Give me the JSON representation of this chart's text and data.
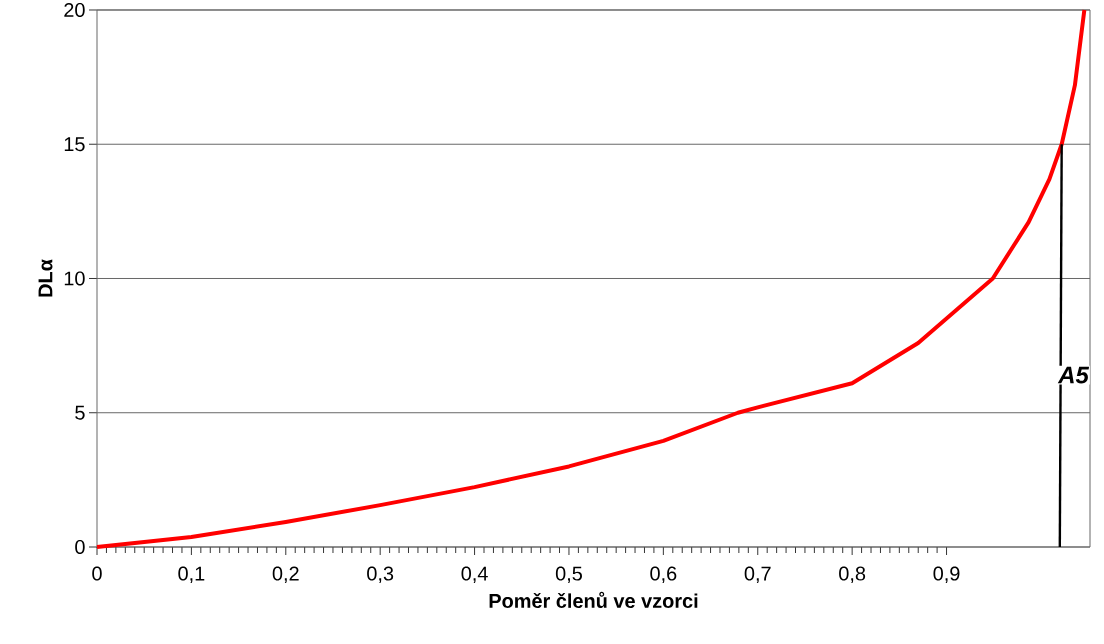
{
  "chart_data": {
    "type": "line",
    "xlabel": "Poměr členů ve vzorci",
    "ylabel": "DLα",
    "xlim": [
      0,
      1.052
    ],
    "ylim": [
      0,
      20
    ],
    "xticks": [
      {
        "value": 0,
        "label": "0"
      },
      {
        "value": 0.1,
        "label": "0,1"
      },
      {
        "value": 0.2,
        "label": "0,2"
      },
      {
        "value": 0.3,
        "label": "0,3"
      },
      {
        "value": 0.4,
        "label": "0,4"
      },
      {
        "value": 0.5,
        "label": "0,5"
      },
      {
        "value": 0.6,
        "label": "0,6"
      },
      {
        "value": 0.7,
        "label": "0,7"
      },
      {
        "value": 0.8,
        "label": "0,8"
      },
      {
        "value": 0.9,
        "label": "0,9"
      }
    ],
    "yticks": [
      0,
      5,
      10,
      15,
      20
    ],
    "grid": "y",
    "marker": "none",
    "series": [
      {
        "color": "#ff0000",
        "x": [
          0,
          0.1,
          0.2,
          0.3,
          0.4,
          0.5,
          0.6,
          0.679,
          0.7,
          0.8,
          0.87,
          0.949,
          0.987,
          1.009,
          1.022,
          1.036,
          1.046
        ],
        "values": [
          0,
          0.37,
          0.93,
          1.56,
          2.23,
          3.0,
          3.95,
          5,
          5.2,
          6.1,
          7.6,
          10,
          12.1,
          13.7,
          15,
          17.2,
          20
        ]
      },
      {
        "color": "#000000",
        "x": [
          1.02,
          1.022
        ],
        "values": [
          0,
          15
        ]
      }
    ],
    "annotations": [
      "A5"
    ]
  }
}
